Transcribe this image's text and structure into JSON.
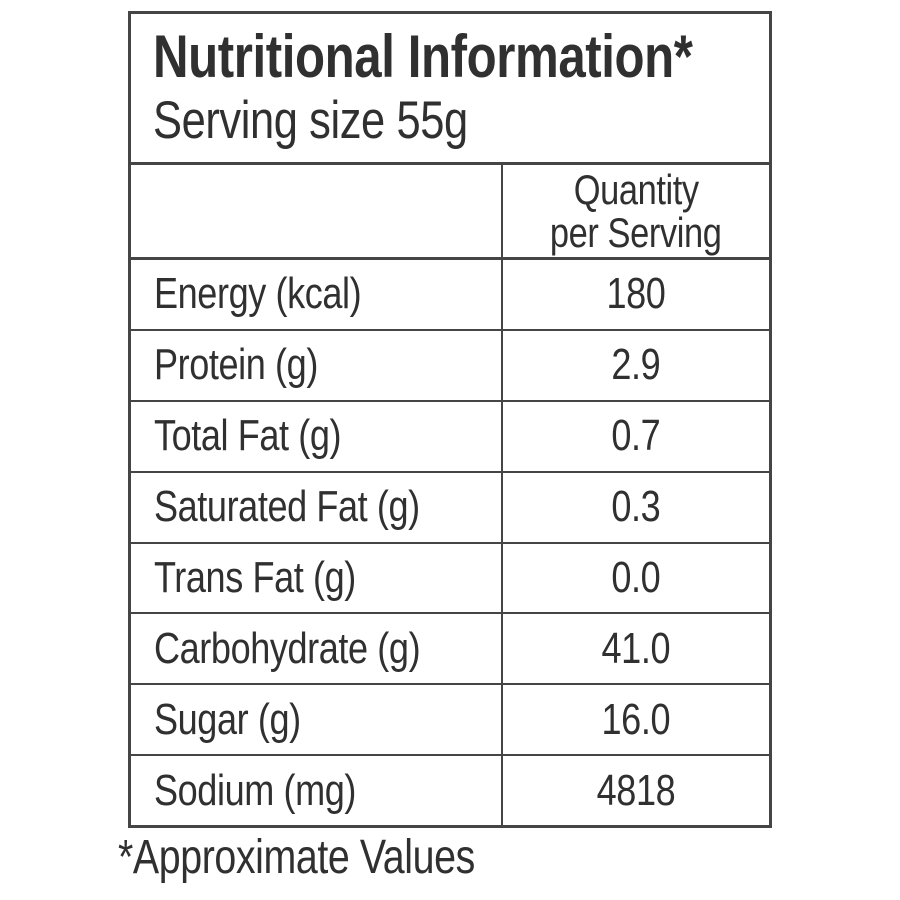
{
  "title": "Nutritional Information*",
  "serving_size": "Serving size 55g",
  "column_header": {
    "line1": "Quantity",
    "line2": "per Serving"
  },
  "rows": [
    {
      "label": "Energy (kcal)",
      "value": "180"
    },
    {
      "label": "Protein (g)",
      "value": "2.9"
    },
    {
      "label": "Total Fat (g)",
      "value": "0.7"
    },
    {
      "label": "Saturated Fat (g)",
      "value": "0.3"
    },
    {
      "label": "Trans Fat (g)",
      "value": "0.0"
    },
    {
      "label": "Carbohydrate (g)",
      "value": "41.0"
    },
    {
      "label": "Sugar (g)",
      "value": "16.0"
    },
    {
      "label": "Sodium (mg)",
      "value": "4818"
    }
  ],
  "footnote": "*Approximate Values",
  "colors": {
    "text": "#303030",
    "border": "#454545",
    "background": "#ffffff"
  }
}
